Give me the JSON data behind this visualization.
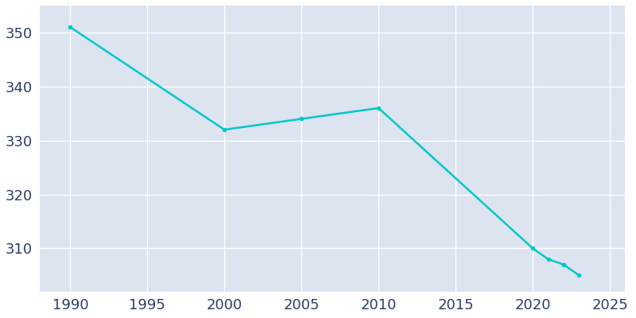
{
  "years": [
    1990,
    2000,
    2005,
    2010,
    2020,
    2021,
    2022,
    2023
  ],
  "population": [
    351,
    332,
    334,
    336,
    310,
    308,
    307,
    305
  ],
  "line_color": "#00c8c8",
  "marker_color": "#00c8c8",
  "plot_bg_color": "#dce4f0",
  "fig_bg_color": "#ffffff",
  "xlim": [
    1988,
    2026
  ],
  "ylim": [
    302,
    355
  ],
  "xticks": [
    1990,
    1995,
    2000,
    2005,
    2010,
    2015,
    2020,
    2025
  ],
  "yticks": [
    310,
    320,
    330,
    340,
    350
  ],
  "grid_color": "#ffffff",
  "tick_color": "#2b3d6b",
  "tick_fontsize": 13,
  "line_width": 1.8,
  "marker_size": 4
}
